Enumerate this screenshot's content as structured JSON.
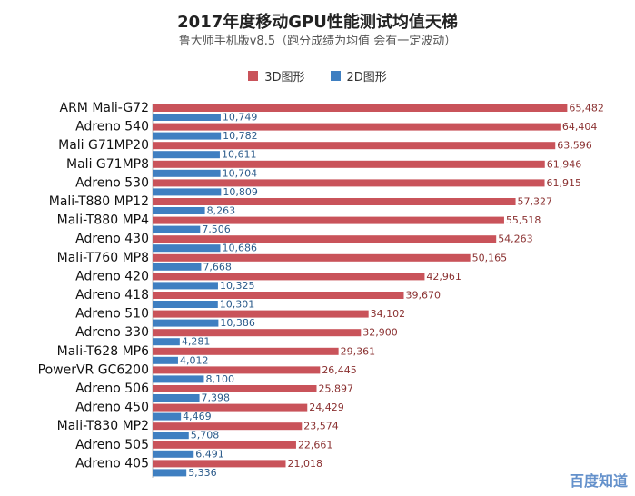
{
  "header": {
    "title": "2017年度移动GPU性能测试均值天梯",
    "subtitle": "鲁大师手机版v8.5（跑分成绩为均值 会有一定波动）"
  },
  "watermark": "百度知道",
  "chart_data": {
    "type": "bar",
    "orientation": "horizontal",
    "title": "2017年度移动GPU性能测试均值天梯",
    "subtitle": "鲁大师手机版v8.5（跑分成绩为均值 会有一定波动）",
    "xlabel": "",
    "ylabel": "",
    "xlim": [
      0,
      66000
    ],
    "grid": false,
    "legend_position": "top-center",
    "categories": [
      "ARM Mali-G72",
      "Adreno 540",
      "Mali G71MP20",
      "Mali G71MP8",
      "Adreno 530",
      "Mali-T880 MP12",
      "Mali-T880 MP4",
      "Adreno 430",
      "Mali-T760 MP8",
      "Adreno 420",
      "Adreno 418",
      "Adreno 510",
      "Adreno 330",
      "Mali-T628 MP6",
      "PowerVR GC6200",
      "Adreno 506",
      "Adreno 450",
      "Mali-T830 MP2",
      "Adreno 505",
      "Adreno 405"
    ],
    "series": [
      {
        "name": "3D图形",
        "color": "#c9535a",
        "values": [
          65482,
          64404,
          63596,
          61946,
          61915,
          57327,
          55518,
          54263,
          50165,
          42961,
          39670,
          34102,
          32900,
          29361,
          26445,
          25897,
          24429,
          23574,
          22661,
          21018
        ],
        "labels": [
          "65,482",
          "64,404",
          "63,596",
          "61,946",
          "61,915",
          "57,327",
          "55,518",
          "54,263",
          "50,165",
          "42,961",
          "39,670",
          "34,102",
          "32,900",
          "29,361",
          "26,445",
          "25,897",
          "24,429",
          "23,574",
          "22,661",
          "21,018"
        ]
      },
      {
        "name": "2D图形",
        "color": "#3f7fc1",
        "values": [
          10749,
          10782,
          10611,
          10704,
          10809,
          8263,
          7506,
          10686,
          7668,
          10325,
          10301,
          10386,
          4281,
          4012,
          8100,
          7398,
          4469,
          5708,
          6491,
          5336
        ],
        "labels": [
          "10,749",
          "10,782",
          "10,611",
          "10,704",
          "10,809",
          "8,263",
          "7,506",
          "10,686",
          "7,668",
          "10,325",
          "10,301",
          "10,386",
          "4,281",
          "4,012",
          "8,100",
          "7,398",
          "4,469",
          "5,708",
          "6,491",
          "5,336"
        ]
      }
    ]
  }
}
